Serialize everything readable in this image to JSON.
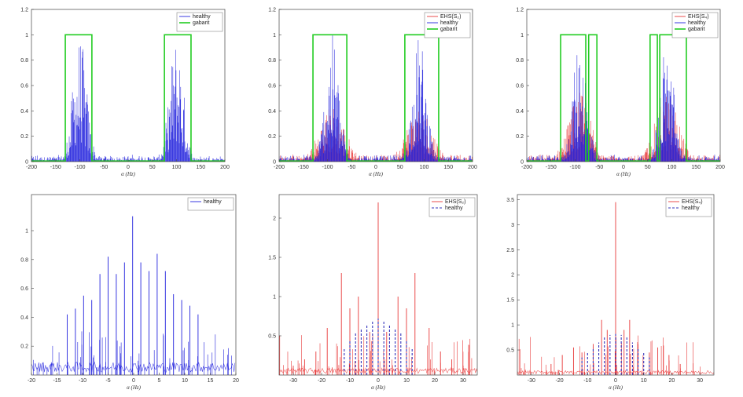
{
  "figure": {
    "colors": {
      "healthy": "#2222dd",
      "ehs": "#e83a3a",
      "gabarit": "#22cc22",
      "axis": "#444444",
      "dashed_healthy": "#3333bb"
    }
  },
  "chart_data": [
    {
      "id": "p1",
      "type": "line",
      "xlim": [
        -200,
        200
      ],
      "ylim": [
        0,
        1.2
      ],
      "xticks": [
        "-200",
        "-150",
        "-100",
        "-50",
        "0",
        "50",
        "100",
        "150",
        "200"
      ],
      "yticks": [
        "0",
        "0.2",
        "0.4",
        "0.6",
        "0.8",
        "1",
        "1.2"
      ],
      "xlabel": "α (Hz)",
      "legend": [
        "healthy",
        "gabarit"
      ],
      "legend_loc": "top-right",
      "series": [
        {
          "name": "healthy",
          "kind": "spectrum",
          "centers": [
            -100,
            100
          ],
          "peak": 1.0,
          "width": 30
        },
        {
          "name": "gabarit",
          "kind": "mask",
          "windows": [
            [
              -130,
              -75
            ],
            [
              75,
              130
            ]
          ],
          "level": 1.0
        }
      ]
    },
    {
      "id": "p2",
      "type": "line",
      "xlim": [
        -200,
        200
      ],
      "ylim": [
        0,
        1.2
      ],
      "xticks": [
        "-200",
        "-150",
        "-100",
        "-50",
        "0",
        "50",
        "100",
        "150",
        "200"
      ],
      "yticks": [
        "0",
        "0.2",
        "0.4",
        "0.6",
        "0.8",
        "1",
        "1.2"
      ],
      "xlabel": "α (Hz)",
      "legend": [
        "EHS(S₂)",
        "healthy",
        "gabarit"
      ],
      "legend_loc": "top-right",
      "series": [
        {
          "name": "EHS(S₂)",
          "kind": "spectrum",
          "centers": [
            -90,
            90
          ],
          "peak": 0.45,
          "width": 55
        },
        {
          "name": "healthy",
          "kind": "spectrum",
          "centers": [
            -90,
            90
          ],
          "peak": 1.0,
          "width": 30
        },
        {
          "name": "gabarit",
          "kind": "mask",
          "windows": [
            [
              -130,
              -60
            ],
            [
              60,
              130
            ]
          ],
          "level": 1.0
        }
      ]
    },
    {
      "id": "p3",
      "type": "line",
      "xlim": [
        -200,
        200
      ],
      "ylim": [
        0,
        1.2
      ],
      "xticks": [
        "-200",
        "-150",
        "-100",
        "-50",
        "0",
        "50",
        "100",
        "150",
        "200"
      ],
      "yticks": [
        "0",
        "0.2",
        "0.4",
        "0.6",
        "0.8",
        "1",
        "1.2"
      ],
      "xlabel": "α (Hz)",
      "legend": [
        "EHS(S₄)",
        "healthy",
        "gabarit"
      ],
      "legend_loc": "top-right",
      "series": [
        {
          "name": "EHS(S₄)",
          "kind": "spectrum",
          "centers": [
            -90,
            90
          ],
          "peak": 0.55,
          "width": 50
        },
        {
          "name": "healthy",
          "kind": "spectrum",
          "centers": [
            -90,
            90
          ],
          "peak": 1.0,
          "width": 30
        },
        {
          "name": "gabarit",
          "kind": "mask",
          "windows": [
            [
              -130,
              -78
            ],
            [
              -72,
              -55
            ],
            [
              55,
              70
            ],
            [
              75,
              130
            ]
          ],
          "level": 1.0
        }
      ]
    },
    {
      "id": "p4",
      "type": "line",
      "xlim": [
        -20,
        20
      ],
      "ylim": [
        0,
        1.25
      ],
      "xticks": [
        "-20",
        "-15",
        "-10",
        "-5",
        "0",
        "5",
        "10",
        "15",
        "20"
      ],
      "yticks": [
        "0.2",
        "0.4",
        "0.6",
        "0.8",
        "1"
      ],
      "xlabel": "α (Hz)",
      "legend": [
        "healthy"
      ],
      "legend_loc": "top-right",
      "series": [
        {
          "name": "healthy",
          "kind": "comb",
          "x": [
            -13,
            -11.4,
            -9.8,
            -8.2,
            -6.6,
            -5,
            -3.4,
            -1.8,
            -0.2,
            1.4,
            3,
            4.6,
            6.2,
            7.8,
            9.4,
            11,
            12.6
          ],
          "y": [
            0.42,
            0.46,
            0.55,
            0.52,
            0.7,
            0.82,
            0.7,
            0.78,
            1.1,
            0.78,
            0.72,
            0.84,
            0.72,
            0.56,
            0.52,
            0.48,
            0.42
          ]
        }
      ]
    },
    {
      "id": "p5",
      "type": "line",
      "xlim": [
        -35,
        35
      ],
      "ylim": [
        0,
        2.3
      ],
      "xticks": [
        "-30",
        "-20",
        "-10",
        "0",
        "10",
        "20",
        "30"
      ],
      "yticks": [
        "0.5",
        "1",
        "1.5",
        "2"
      ],
      "xlabel": "α (Hz)",
      "legend": [
        "EHS(S₂)",
        "healthy"
      ],
      "legend_loc": "top-right",
      "series": [
        {
          "name": "EHS(S₂)",
          "kind": "comb",
          "x": [
            -30,
            -26,
            -22,
            -18,
            -13,
            -10,
            -7,
            -3,
            0,
            3,
            7,
            10,
            13,
            18,
            22,
            26,
            30
          ],
          "y": [
            0.12,
            0.2,
            0.3,
            0.6,
            1.3,
            0.85,
            1.0,
            0.55,
            2.2,
            0.55,
            1.0,
            0.85,
            1.3,
            0.6,
            0.3,
            0.2,
            0.12
          ]
        },
        {
          "name": "healthy",
          "kind": "comb",
          "dashed": true,
          "x": [
            -12,
            -10,
            -8,
            -6,
            -4,
            -2,
            0,
            2,
            4,
            6,
            8,
            10,
            12
          ],
          "y": [
            0.35,
            0.45,
            0.55,
            0.6,
            0.65,
            0.7,
            0.72,
            0.7,
            0.65,
            0.6,
            0.55,
            0.45,
            0.35
          ]
        }
      ]
    },
    {
      "id": "p6",
      "type": "line",
      "xlim": [
        -35,
        35
      ],
      "ylim": [
        0,
        3.6
      ],
      "xticks": [
        "-30",
        "-20",
        "-10",
        "0",
        "10",
        "20",
        "30"
      ],
      "yticks": [
        "0.5",
        "1",
        "1.5",
        "2",
        "2.5",
        "3",
        "3.5"
      ],
      "xlabel": "α (Hz)",
      "legend": [
        "EHS(S₄)",
        "healthy"
      ],
      "legend_loc": "top-right",
      "series": [
        {
          "name": "EHS(S₄)",
          "kind": "comb",
          "x": [
            -23,
            -19,
            -15,
            -12,
            -8,
            -5,
            -3,
            0,
            3,
            5,
            8,
            12,
            15,
            19,
            23
          ],
          "y": [
            0.22,
            0.4,
            0.55,
            0.45,
            0.62,
            1.1,
            0.9,
            3.45,
            0.9,
            1.1,
            0.62,
            0.45,
            0.55,
            0.4,
            0.22
          ]
        },
        {
          "name": "healthy",
          "kind": "comb",
          "dashed": true,
          "x": [
            -12,
            -10,
            -8,
            -6,
            -4,
            -2,
            0,
            2,
            4,
            6,
            8,
            10,
            12
          ],
          "y": [
            0.35,
            0.45,
            0.55,
            0.65,
            0.75,
            0.8,
            0.82,
            0.8,
            0.75,
            0.65,
            0.55,
            0.45,
            0.35
          ]
        }
      ]
    }
  ]
}
